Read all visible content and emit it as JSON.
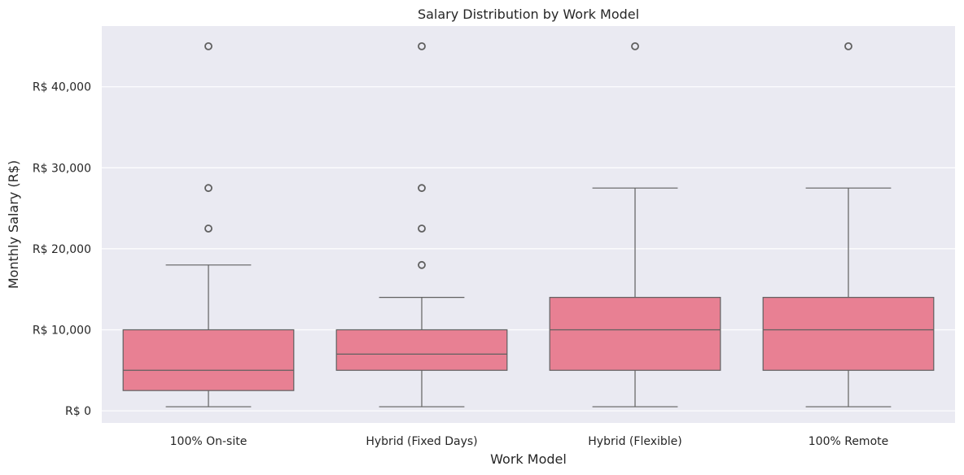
{
  "chart_data": {
    "type": "box",
    "title": "Salary Distribution by Work Model",
    "xlabel": "Work Model",
    "ylabel": "Monthly Salary (R$)",
    "ylim": [
      -1500,
      47500
    ],
    "yticks": [
      {
        "value": 0,
        "label": "R$ 0"
      },
      {
        "value": 10000,
        "label": "R$ 10,000"
      },
      {
        "value": 20000,
        "label": "R$ 20,000"
      },
      {
        "value": 30000,
        "label": "R$ 30,000"
      },
      {
        "value": 40000,
        "label": "R$ 40,000"
      }
    ],
    "grid": true,
    "categories": [
      "100% On-site",
      "Hybrid (Fixed Days)",
      "Hybrid (Flexible)",
      "100% Remote"
    ],
    "boxes": [
      {
        "whisker_low": 500,
        "q1": 2500,
        "median": 5000,
        "q3": 10000,
        "whisker_high": 18000,
        "outliers": [
          22500,
          27500,
          45000
        ]
      },
      {
        "whisker_low": 500,
        "q1": 5000,
        "median": 7000,
        "q3": 10000,
        "whisker_high": 14000,
        "outliers": [
          18000,
          22500,
          27500,
          45000
        ]
      },
      {
        "whisker_low": 500,
        "q1": 5000,
        "median": 10000,
        "q3": 14000,
        "whisker_high": 27500,
        "outliers": [
          45000
        ]
      },
      {
        "whisker_low": 500,
        "q1": 5000,
        "median": 10000,
        "q3": 14000,
        "whisker_high": 27500,
        "outliers": [
          45000
        ]
      }
    ],
    "colors": {
      "box_fill": "#e88093",
      "line": "#606060",
      "plot_bg": "#eaeaf2",
      "grid": "#ffffff",
      "text": "#262626"
    }
  }
}
